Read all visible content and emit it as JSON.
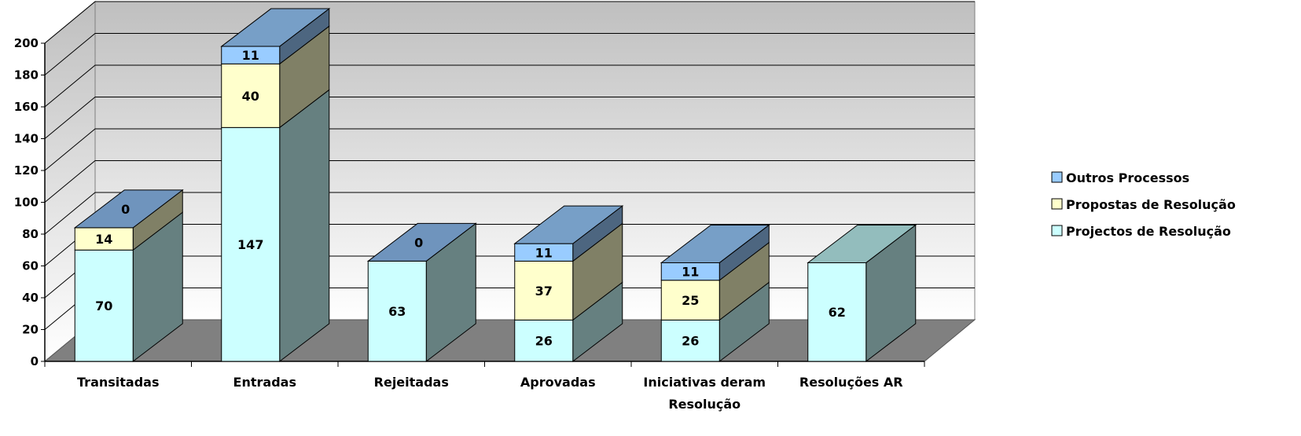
{
  "chart_data": {
    "type": "bar",
    "stacked": true,
    "three_d": true,
    "categories": [
      "Transitadas",
      "Entradas",
      "Rejeitadas",
      "Aprovadas",
      "Iniciativas deram Resolução",
      "Resoluções AR"
    ],
    "category_lines": [
      [
        "Transitadas"
      ],
      [
        "Entradas"
      ],
      [
        "Rejeitadas"
      ],
      [
        "Aprovadas"
      ],
      [
        "Iniciativas deram",
        "Resolução"
      ],
      [
        "Resoluções AR"
      ]
    ],
    "series": [
      {
        "name": "Projectos de Resolução",
        "values": [
          70,
          147,
          63,
          26,
          26,
          62
        ],
        "color": "#CCFFFF"
      },
      {
        "name": "Propostas de Resolução",
        "values": [
          14,
          40,
          null,
          37,
          25,
          null
        ],
        "color": "#FFFFCC"
      },
      {
        "name": "Outros Processos",
        "values": [
          0,
          11,
          0,
          11,
          11,
          null
        ],
        "color": "#99CCFF"
      }
    ],
    "ylim": [
      0,
      200
    ],
    "yticks": [
      0,
      20,
      40,
      60,
      80,
      100,
      120,
      140,
      160,
      180,
      200
    ],
    "grid": true,
    "legend_position": "right",
    "wall_gradient": [
      "#BFBFBF",
      "#FFFFFF"
    ],
    "floor_color": "#808080"
  }
}
